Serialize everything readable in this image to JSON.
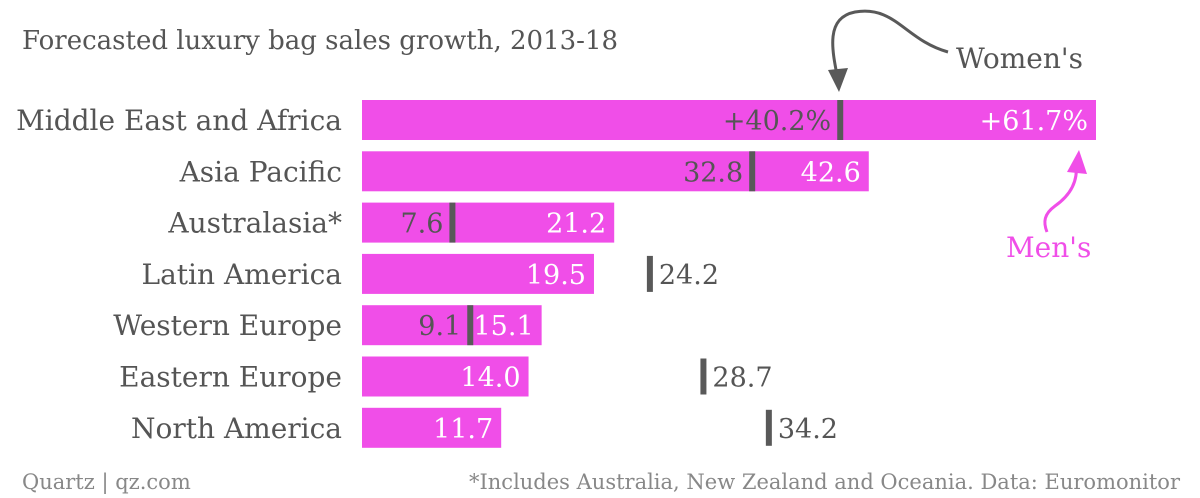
{
  "chart_data": {
    "type": "bar",
    "title": "Forecasted luxury bag sales growth, 2013-18",
    "categories": [
      "Middle East and Africa",
      "Asia Pacific",
      "Australasia*",
      "Latin America",
      "Western Europe",
      "Eastern Europe",
      "North America"
    ],
    "series": [
      {
        "name": "Men's",
        "values": [
          61.7,
          42.6,
          21.2,
          19.5,
          15.1,
          14.0,
          11.7
        ],
        "labels": [
          "+61.7%",
          "42.6",
          "21.2",
          "19.5",
          "15.1",
          "14.0",
          "11.7"
        ],
        "color": "#f04ee8"
      },
      {
        "name": "Women's",
        "values": [
          40.2,
          32.8,
          7.6,
          24.2,
          9.1,
          28.7,
          34.2
        ],
        "labels": [
          "+40.2%",
          "32.8",
          "7.6",
          "24.2",
          "9.1",
          "28.7",
          "34.2"
        ],
        "color": "#595959"
      }
    ],
    "xlim": [
      0,
      61.7
    ],
    "grid": false,
    "legend": "annotations"
  },
  "footer": {
    "source_left": "Quartz | qz.com",
    "source_right": "*Includes Australia, New Zealand and Oceania. Data: Euromonitor"
  },
  "colors": {
    "mens_bar": "#f04ee8",
    "womens_marker": "#595959",
    "text": "#555555",
    "footer_text": "#888888"
  }
}
